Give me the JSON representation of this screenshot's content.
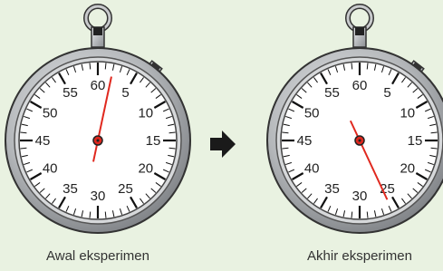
{
  "stopwatches": [
    {
      "caption": "Awal eksperimen",
      "dial_labels": [
        "60",
        "5",
        "10",
        "15",
        "20",
        "25",
        "30",
        "35",
        "40",
        "45",
        "50",
        "55"
      ]
    },
    {
      "caption": "Akhir eksperimen",
      "dial_labels": [
        "60",
        "5",
        "10",
        "15",
        "20",
        "25",
        "30",
        "35",
        "40",
        "45",
        "50",
        "55"
      ]
    }
  ]
}
